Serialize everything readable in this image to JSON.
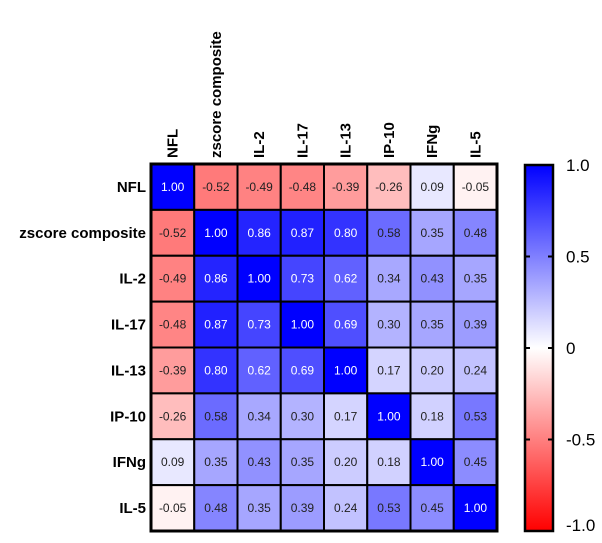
{
  "chart_data": {
    "type": "heatmap",
    "title": "",
    "labels": [
      "NFL",
      "zscore composite",
      "IL-2",
      "IL-17",
      "IL-13",
      "IP-10",
      "IFNg",
      "IL-5"
    ],
    "matrix": [
      [
        1.0,
        -0.52,
        -0.49,
        -0.48,
        -0.39,
        -0.26,
        0.09,
        -0.05
      ],
      [
        -0.52,
        1.0,
        0.86,
        0.87,
        0.8,
        0.58,
        0.35,
        0.48
      ],
      [
        -0.49,
        0.86,
        1.0,
        0.73,
        0.62,
        0.34,
        0.43,
        0.35
      ],
      [
        -0.48,
        0.87,
        0.73,
        1.0,
        0.69,
        0.3,
        0.35,
        0.39
      ],
      [
        -0.39,
        0.8,
        0.62,
        0.69,
        1.0,
        0.17,
        0.2,
        0.24
      ],
      [
        -0.26,
        0.58,
        0.34,
        0.3,
        0.17,
        1.0,
        0.18,
        0.53
      ],
      [
        0.09,
        0.35,
        0.43,
        0.35,
        0.2,
        0.18,
        1.0,
        0.45
      ],
      [
        -0.05,
        0.48,
        0.35,
        0.39,
        0.24,
        0.53,
        0.45,
        1.0
      ]
    ],
    "colorbar": {
      "range": [
        -1.0,
        1.0
      ],
      "ticks": [
        1.0,
        0.5,
        0,
        -0.5,
        -1.0
      ],
      "tick_labels": [
        "1.0",
        "0.5",
        "0",
        "-0.5",
        "-1.0"
      ],
      "colors": {
        "low": "#ff0000",
        "mid": "#ffffff",
        "high": "#0000ff"
      },
      "position": "right"
    }
  }
}
